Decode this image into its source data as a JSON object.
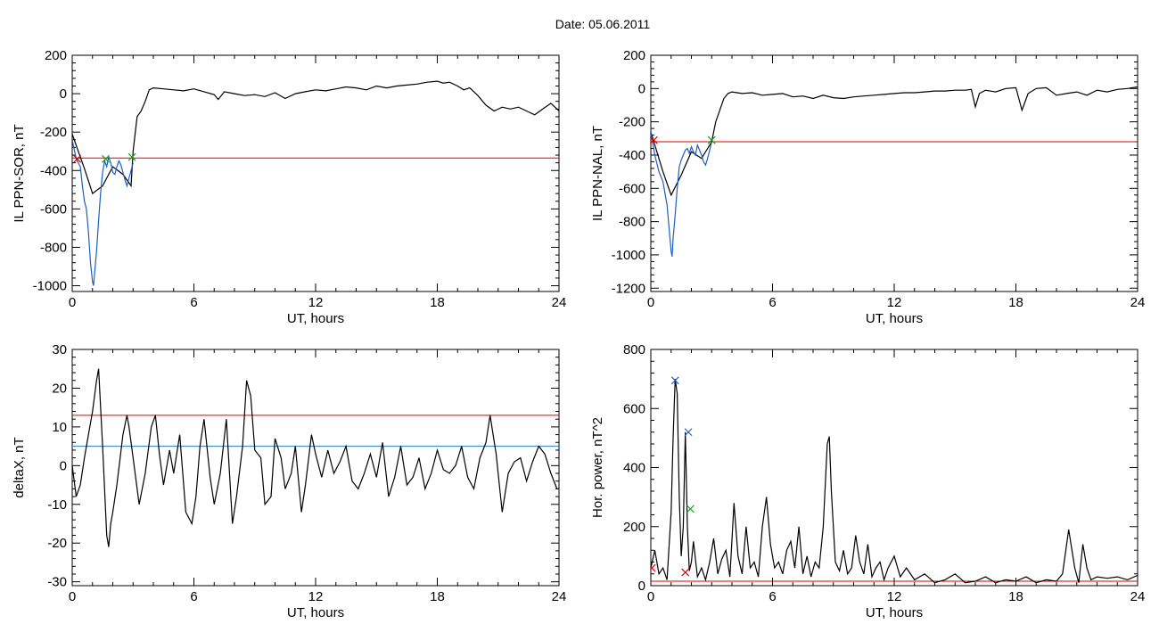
{
  "header": {
    "title": "Date:  05.06.2011"
  },
  "chart_data": [
    {
      "id": "sor",
      "type": "line",
      "xlabel": "UT, hours",
      "ylabel": "IL PPN-SOR, nT",
      "xlim": [
        0,
        24
      ],
      "ylim": [
        -1030,
        200
      ],
      "xticks": [
        0,
        6,
        12,
        18,
        24
      ],
      "yticks": [
        -1000,
        -800,
        -600,
        -400,
        -200,
        0,
        200
      ],
      "hlines": [
        {
          "y": -335,
          "color": "#e00000"
        }
      ],
      "series": [
        {
          "color": "#000000",
          "x": [
            0,
            0.3,
            0.6,
            1.0,
            1.5,
            2.0,
            2.5,
            2.9,
            3.0,
            3.2,
            3.4,
            3.6,
            3.8,
            4.0,
            4.5,
            5.0,
            5.5,
            6.0,
            6.5,
            7.0,
            7.2,
            7.5,
            8.0,
            8.5,
            9.0,
            9.5,
            10.0,
            10.5,
            11.0,
            11.5,
            12.0,
            12.5,
            13.0,
            13.5,
            14.0,
            14.5,
            15.0,
            15.5,
            16.0,
            16.5,
            17.0,
            17.5,
            18.0,
            18.3,
            18.6,
            19.0,
            19.3,
            19.6,
            20.0,
            20.4,
            20.8,
            21.2,
            21.6,
            22.0,
            22.4,
            22.8,
            23.2,
            23.6,
            24.0
          ],
          "y": [
            -210,
            -300,
            -390,
            -520,
            -480,
            -380,
            -420,
            -480,
            -300,
            -120,
            -90,
            -40,
            20,
            30,
            25,
            20,
            15,
            25,
            10,
            -5,
            -30,
            10,
            0,
            -10,
            -5,
            -15,
            5,
            -25,
            0,
            10,
            20,
            15,
            25,
            35,
            30,
            20,
            40,
            30,
            40,
            45,
            50,
            60,
            65,
            55,
            60,
            40,
            20,
            30,
            -10,
            -60,
            -90,
            -70,
            -80,
            -70,
            -90,
            -110,
            -80,
            -50,
            -90
          ]
        },
        {
          "color": "#1f5fbf",
          "x": [
            0,
            0.2,
            0.4,
            0.5,
            0.6,
            0.7,
            0.8,
            0.9,
            1.0,
            1.05,
            1.1,
            1.2,
            1.3,
            1.4,
            1.5,
            1.6,
            1.7,
            1.8,
            1.9,
            2.0,
            2.1,
            2.2,
            2.3,
            2.4,
            2.5,
            2.6,
            2.7,
            2.8,
            2.9,
            3.0
          ],
          "y": [
            -240,
            -340,
            -380,
            -480,
            -560,
            -600,
            -720,
            -880,
            -980,
            -1000,
            -940,
            -820,
            -660,
            -520,
            -410,
            -350,
            -380,
            -330,
            -360,
            -410,
            -420,
            -380,
            -350,
            -370,
            -410,
            -450,
            -480,
            -440,
            -400,
            -360
          ]
        }
      ],
      "markers": [
        {
          "x": 0.25,
          "y": -340,
          "color": "#e00000"
        },
        {
          "x": 1.65,
          "y": -340,
          "color": "#10a010"
        },
        {
          "x": 2.95,
          "y": -330,
          "color": "#10a010"
        }
      ]
    },
    {
      "id": "nal",
      "type": "line",
      "xlabel": "UT, hours",
      "ylabel": "IL PPN-NAL, nT",
      "xlim": [
        0,
        24
      ],
      "ylim": [
        -1220,
        200
      ],
      "xticks": [
        0,
        6,
        12,
        18,
        24
      ],
      "yticks": [
        -1200,
        -1000,
        -800,
        -600,
        -400,
        -200,
        0,
        200
      ],
      "hlines": [
        {
          "y": -320,
          "color": "#e00000"
        }
      ],
      "series": [
        {
          "color": "#000000",
          "x": [
            0,
            0.3,
            0.6,
            1.0,
            1.5,
            2.0,
            2.5,
            3.0,
            3.2,
            3.4,
            3.6,
            3.8,
            4.0,
            4.5,
            5.0,
            5.5,
            6.0,
            6.5,
            7.0,
            7.5,
            8.0,
            8.5,
            9.0,
            9.5,
            10.0,
            10.5,
            11.0,
            11.5,
            12.0,
            12.5,
            13.0,
            13.5,
            14.0,
            14.5,
            15.0,
            15.5,
            15.8,
            16.0,
            16.2,
            16.5,
            17.0,
            17.5,
            18.0,
            18.3,
            18.6,
            19.0,
            19.5,
            20.0,
            20.5,
            21.0,
            21.5,
            22.0,
            22.5,
            23.0,
            23.5,
            24.0
          ],
          "y": [
            -260,
            -380,
            -500,
            -640,
            -520,
            -380,
            -420,
            -320,
            -200,
            -130,
            -60,
            -30,
            -20,
            -30,
            -25,
            -40,
            -35,
            -30,
            -50,
            -45,
            -60,
            -40,
            -55,
            -60,
            -50,
            -45,
            -40,
            -35,
            -30,
            -25,
            -25,
            -20,
            -15,
            -15,
            -10,
            -10,
            -5,
            -110,
            -30,
            -10,
            -20,
            0,
            5,
            -130,
            -30,
            0,
            5,
            -40,
            -30,
            -20,
            -40,
            -10,
            -20,
            -5,
            0,
            10
          ]
        },
        {
          "color": "#1f5fbf",
          "x": [
            0,
            0.2,
            0.4,
            0.6,
            0.8,
            1.0,
            1.05,
            1.1,
            1.2,
            1.3,
            1.4,
            1.5,
            1.6,
            1.7,
            1.8,
            1.9,
            2.0,
            2.1,
            2.2,
            2.3,
            2.4,
            2.5,
            2.6,
            2.7,
            2.8,
            2.9,
            3.0
          ],
          "y": [
            -260,
            -400,
            -500,
            -560,
            -700,
            -980,
            -1010,
            -900,
            -760,
            -600,
            -470,
            -430,
            -400,
            -370,
            -360,
            -390,
            -350,
            -380,
            -400,
            -340,
            -370,
            -400,
            -440,
            -460,
            -420,
            -370,
            -320
          ]
        }
      ],
      "markers": [
        {
          "x": 0.15,
          "y": -310,
          "color": "#e00000"
        },
        {
          "x": 3.0,
          "y": -310,
          "color": "#10a010"
        }
      ]
    },
    {
      "id": "deltax",
      "type": "line",
      "xlabel": "UT, hours",
      "ylabel": "deltaX, nT",
      "xlim": [
        0,
        24
      ],
      "ylim": [
        -31,
        30
      ],
      "xticks": [
        0,
        6,
        12,
        18,
        24
      ],
      "yticks": [
        -30,
        -20,
        -10,
        0,
        10,
        20,
        30
      ],
      "hlines": [
        {
          "y": 13,
          "color": "#e00000"
        },
        {
          "y": 5,
          "color": "#1f7fbf"
        }
      ],
      "series": [
        {
          "color": "#000000",
          "x": [
            0,
            0.2,
            0.4,
            0.6,
            0.8,
            1.0,
            1.2,
            1.3,
            1.5,
            1.7,
            1.8,
            1.9,
            2.0,
            2.2,
            2.5,
            2.7,
            2.8,
            3.0,
            3.3,
            3.6,
            3.9,
            4.1,
            4.3,
            4.5,
            4.8,
            5.0,
            5.3,
            5.6,
            5.9,
            6.1,
            6.3,
            6.5,
            6.8,
            7.0,
            7.3,
            7.6,
            7.9,
            8.1,
            8.4,
            8.6,
            8.8,
            9.0,
            9.3,
            9.5,
            9.8,
            10.0,
            10.3,
            10.5,
            10.8,
            11.0,
            11.3,
            11.5,
            11.8,
            12.0,
            12.3,
            12.6,
            12.9,
            13.2,
            13.5,
            13.8,
            14.1,
            14.4,
            14.7,
            15.0,
            15.3,
            15.6,
            15.9,
            16.2,
            16.5,
            16.8,
            17.1,
            17.4,
            17.7,
            18.0,
            18.3,
            18.6,
            18.9,
            19.2,
            19.5,
            19.8,
            20.1,
            20.4,
            20.6,
            20.9,
            21.2,
            21.5,
            21.8,
            22.1,
            22.4,
            22.7,
            23.0,
            23.3,
            23.6,
            23.9,
            24.0
          ],
          "y": [
            0,
            -8,
            -5,
            2,
            8,
            14,
            22,
            25,
            5,
            -18,
            -21,
            -15,
            -12,
            -5,
            8,
            13,
            10,
            2,
            -10,
            -2,
            10,
            13,
            3,
            -5,
            4,
            -2,
            8,
            -12,
            -15,
            -8,
            5,
            12,
            -3,
            -10,
            -2,
            12,
            -15,
            -8,
            5,
            22,
            18,
            4,
            2,
            -10,
            -8,
            7,
            2,
            -6,
            -2,
            5,
            -12,
            -5,
            8,
            3,
            -3,
            4,
            -2,
            1,
            5,
            -4,
            -6,
            -2,
            3,
            -3,
            6,
            -8,
            -3,
            5,
            -5,
            -3,
            2,
            -6,
            -2,
            4,
            -1,
            -2,
            0,
            5,
            -3,
            -6,
            2,
            6,
            13,
            3,
            -12,
            -2,
            1,
            2,
            -4,
            1,
            5,
            3,
            -2,
            -6,
            -6
          ]
        }
      ],
      "markers": []
    },
    {
      "id": "power",
      "type": "line",
      "xlabel": "UT, hours",
      "ylabel": "Hor. power, nT^2",
      "xlim": [
        0,
        24
      ],
      "ylim": [
        0,
        800
      ],
      "xticks": [
        0,
        6,
        12,
        18,
        24
      ],
      "yticks": [
        0,
        200,
        400,
        600,
        800
      ],
      "hlines": [
        {
          "y": 15,
          "color": "#e00000"
        }
      ],
      "series": [
        {
          "color": "#000000",
          "x": [
            0,
            0.2,
            0.4,
            0.6,
            0.8,
            1.0,
            1.1,
            1.2,
            1.3,
            1.4,
            1.5,
            1.6,
            1.7,
            1.8,
            1.9,
            2.0,
            2.1,
            2.3,
            2.5,
            2.7,
            2.9,
            3.1,
            3.3,
            3.5,
            3.7,
            3.9,
            4.1,
            4.3,
            4.5,
            4.7,
            4.9,
            5.1,
            5.3,
            5.5,
            5.7,
            5.9,
            6.1,
            6.3,
            6.5,
            6.7,
            6.9,
            7.1,
            7.3,
            7.5,
            7.7,
            7.9,
            8.1,
            8.3,
            8.5,
            8.7,
            8.8,
            8.9,
            9.1,
            9.3,
            9.5,
            9.7,
            9.9,
            10.1,
            10.3,
            10.5,
            10.7,
            10.9,
            11.1,
            11.3,
            11.5,
            11.7,
            12.0,
            12.3,
            12.6,
            13.0,
            13.5,
            14.0,
            14.5,
            15.0,
            15.5,
            16.0,
            16.5,
            17.0,
            17.5,
            18.0,
            18.5,
            19.0,
            19.5,
            20.0,
            20.3,
            20.6,
            20.9,
            21.1,
            21.3,
            21.5,
            21.7,
            22.0,
            22.5,
            23.0,
            23.5,
            24.0
          ],
          "y": [
            60,
            120,
            40,
            60,
            20,
            250,
            500,
            700,
            650,
            300,
            100,
            200,
            520,
            200,
            50,
            80,
            150,
            30,
            60,
            20,
            80,
            160,
            40,
            90,
            120,
            30,
            280,
            100,
            40,
            200,
            60,
            80,
            30,
            200,
            300,
            140,
            60,
            80,
            40,
            120,
            150,
            60,
            200,
            40,
            100,
            30,
            80,
            60,
            200,
            480,
            505,
            320,
            80,
            50,
            120,
            40,
            60,
            170,
            80,
            40,
            140,
            30,
            60,
            80,
            20,
            60,
            100,
            30,
            60,
            20,
            40,
            10,
            20,
            40,
            10,
            15,
            30,
            10,
            20,
            15,
            30,
            10,
            20,
            15,
            40,
            190,
            60,
            10,
            140,
            60,
            20,
            30,
            25,
            30,
            20,
            35
          ]
        }
      ],
      "markers": [
        {
          "x": 1.2,
          "y": 695,
          "color": "#1f5fbf"
        },
        {
          "x": 1.85,
          "y": 520,
          "color": "#1f5fbf"
        },
        {
          "x": 1.95,
          "y": 260,
          "color": "#10a010"
        },
        {
          "x": 1.7,
          "y": 45,
          "color": "#e00000"
        },
        {
          "x": 0.05,
          "y": 60,
          "color": "#e00000"
        }
      ]
    }
  ]
}
